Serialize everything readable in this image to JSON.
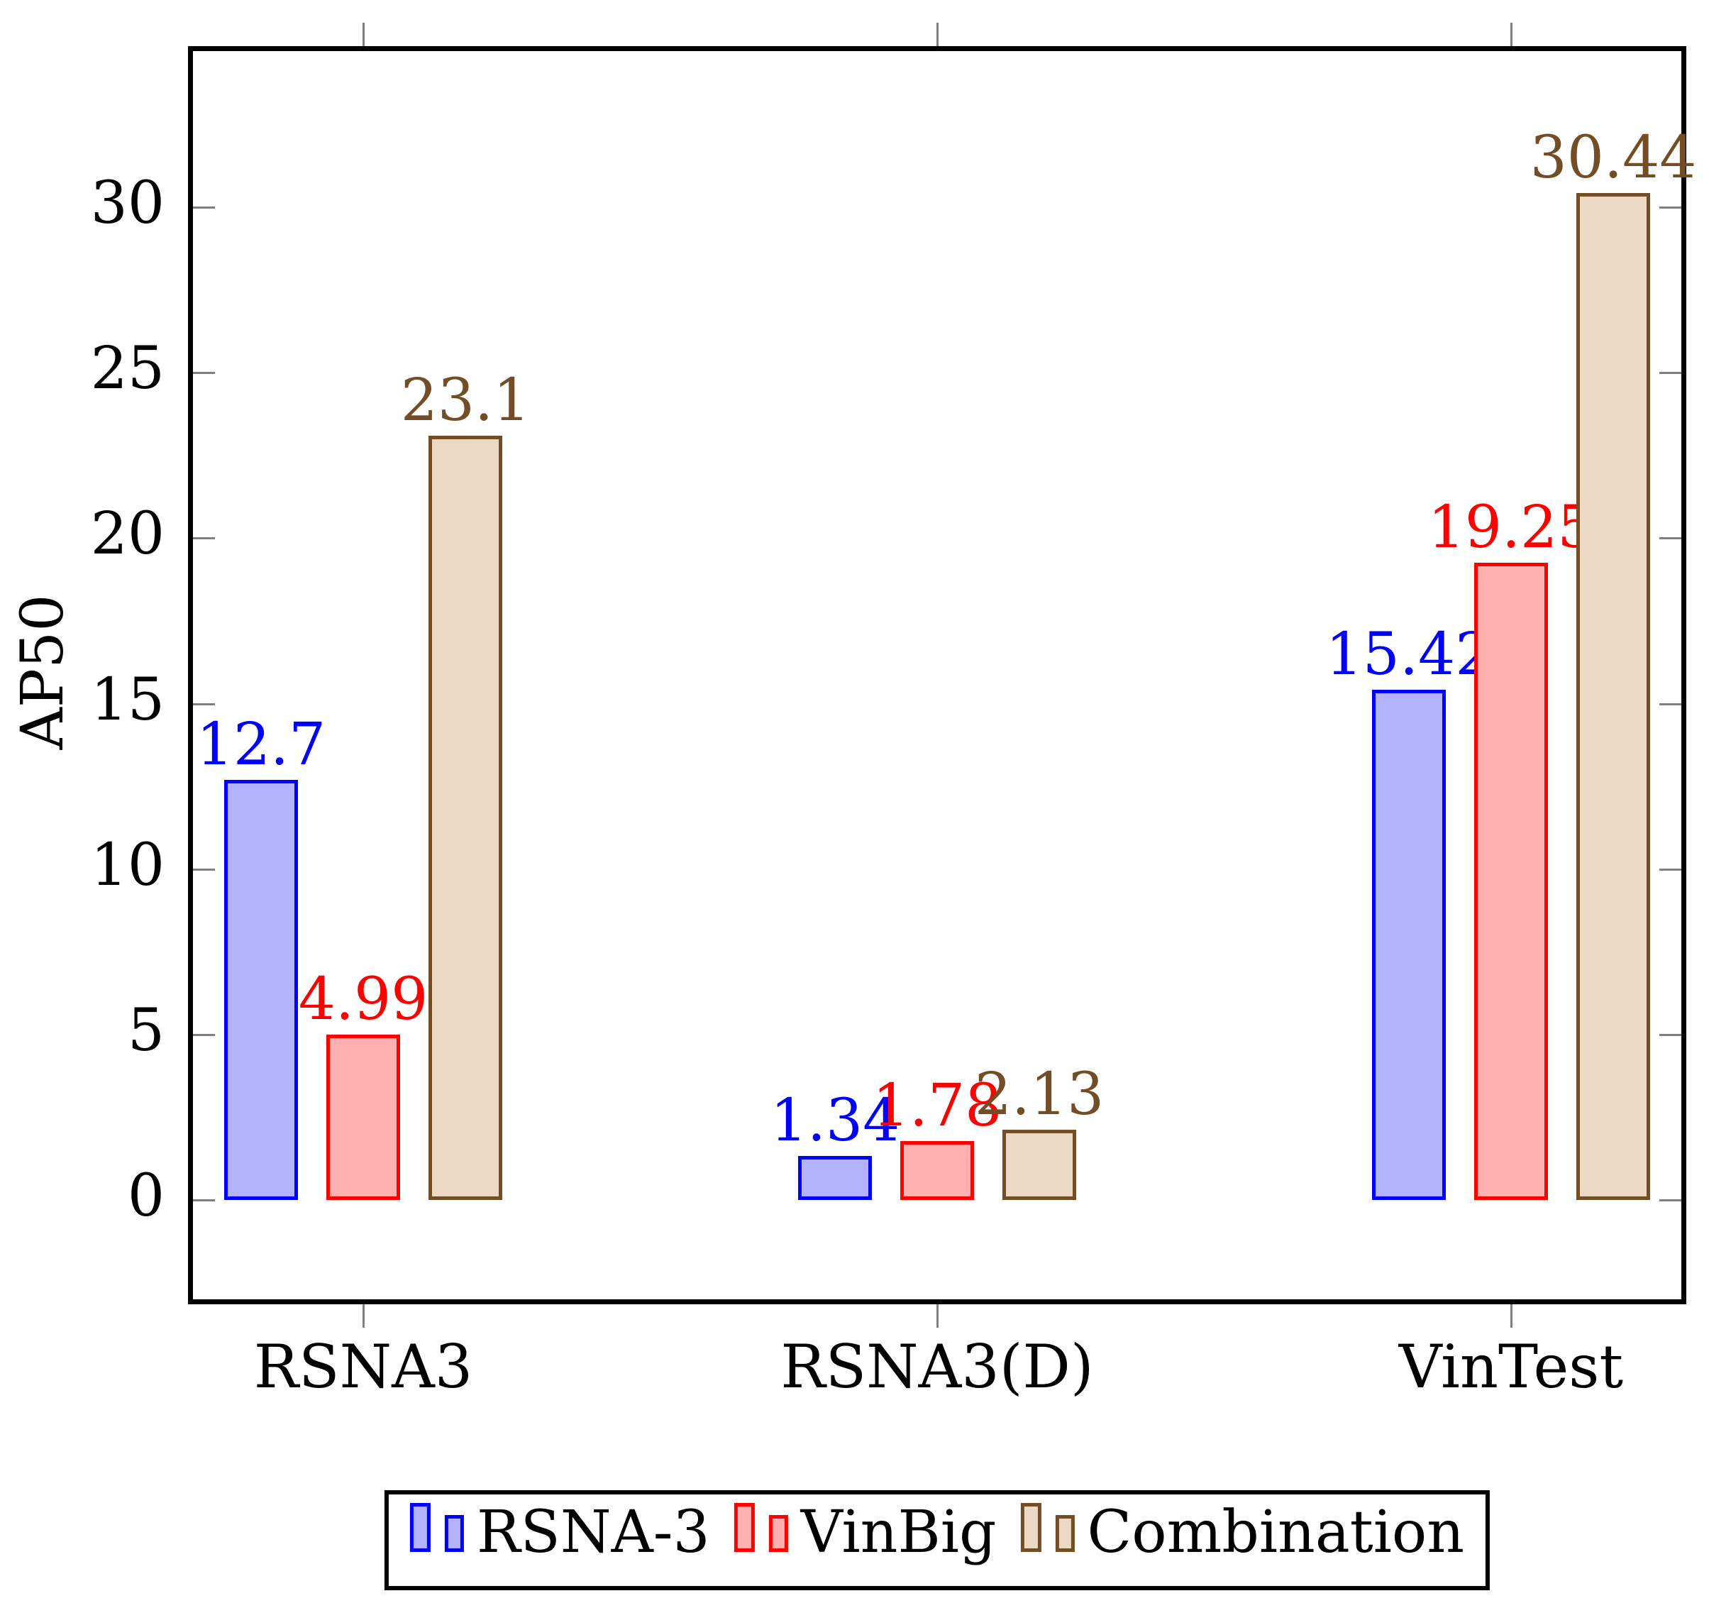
{
  "chart_data": {
    "type": "bar",
    "title": "",
    "ylabel": "AP50",
    "xlabel": "",
    "categories": [
      "RSNA3",
      "RSNA3(D)",
      "VinTest"
    ],
    "series": [
      {
        "name": "RSNA-3",
        "border_color": "#0000FF",
        "fill_color": "#B3B3FB",
        "values": [
          12.7,
          1.34,
          15.42
        ],
        "value_labels": [
          "12.7",
          "1.34",
          "15.42"
        ]
      },
      {
        "name": "VinBig",
        "border_color": "#FF0000",
        "fill_color": "#FFB0B0",
        "values": [
          4.99,
          1.78,
          19.25
        ],
        "value_labels": [
          "4.99",
          "1.78",
          "19.25"
        ]
      },
      {
        "name": "Combination",
        "border_color": "#734D26",
        "fill_color": "#ECD9C4",
        "values": [
          23.1,
          2.13,
          30.44
        ],
        "value_labels": [
          "23.1",
          "2.13",
          "30.44"
        ]
      }
    ],
    "yticks": [
      0,
      5,
      10,
      15,
      20,
      25,
      30
    ],
    "ytick_labels": [
      "0",
      "5",
      "10",
      "15",
      "20",
      "25",
      "30"
    ],
    "ylim": [
      -3.2,
      34.9
    ],
    "grid": false,
    "legend_position": "bottom",
    "axis_color": "#000000",
    "tick_color": "#808080"
  }
}
